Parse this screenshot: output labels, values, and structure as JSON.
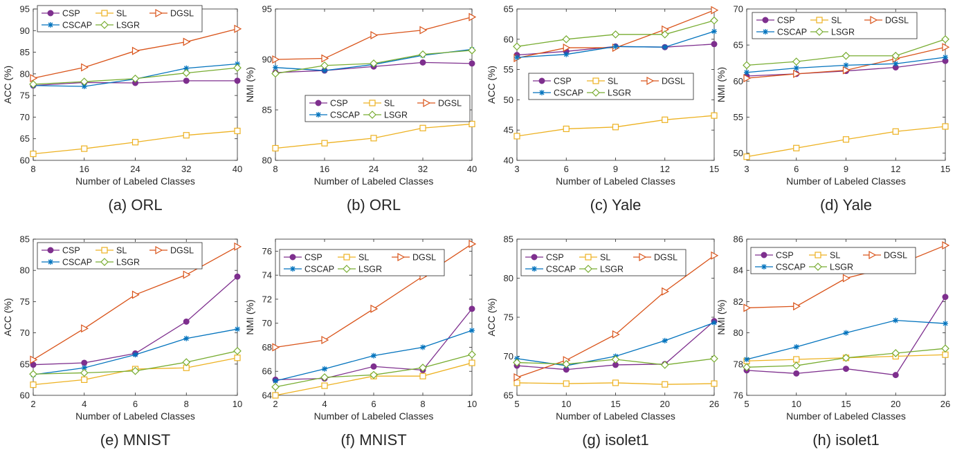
{
  "figure": {
    "xlabel": "Number of Labeled Classes",
    "colors": {
      "CSP": "#7E2F8E",
      "SL": "#EDB120",
      "DGSL": "#D95319",
      "CSCAP": "#0072BD",
      "LSGR": "#77AC30"
    },
    "markers": {
      "CSP": "circle",
      "SL": "square",
      "DGSL": "triangle-right",
      "CSCAP": "asterisk",
      "LSGR": "diamond"
    }
  },
  "chart_data": [
    {
      "type": "line",
      "caption": "(a) ORL",
      "ylabel": "ACC (%)",
      "xticks": [
        "8",
        "16",
        "24",
        "32",
        "40"
      ],
      "ylim": [
        60,
        95
      ],
      "yticks": [
        60,
        65,
        70,
        75,
        80,
        85,
        90,
        95
      ],
      "legend": "top-left",
      "series": [
        {
          "name": "CSP",
          "values": [
            77.3,
            78.0,
            77.9,
            78.4,
            78.4
          ]
        },
        {
          "name": "SL",
          "values": [
            61.5,
            62.7,
            64.2,
            65.8,
            66.8
          ]
        },
        {
          "name": "DGSL",
          "values": [
            79.0,
            81.5,
            85.3,
            87.4,
            90.4
          ]
        },
        {
          "name": "CSCAP",
          "values": [
            77.3,
            77.1,
            78.8,
            81.3,
            82.3
          ]
        },
        {
          "name": "LSGR",
          "values": [
            77.6,
            78.2,
            78.9,
            80.2,
            81.4
          ]
        }
      ]
    },
    {
      "type": "line",
      "caption": "(b) ORL",
      "ylabel": "NMI (%)",
      "xticks": [
        "8",
        "16",
        "24",
        "32",
        "40"
      ],
      "ylim": [
        80,
        95
      ],
      "yticks": [
        80,
        85,
        90,
        95
      ],
      "legend": "middle",
      "series": [
        {
          "name": "CSP",
          "values": [
            88.7,
            88.9,
            89.3,
            89.7,
            89.6
          ]
        },
        {
          "name": "SL",
          "values": [
            81.2,
            81.7,
            82.2,
            83.2,
            83.6
          ]
        },
        {
          "name": "DGSL",
          "values": [
            90.0,
            90.1,
            92.4,
            92.9,
            94.2
          ]
        },
        {
          "name": "CSCAP",
          "values": [
            89.2,
            88.9,
            89.5,
            90.4,
            91.0
          ]
        },
        {
          "name": "LSGR",
          "values": [
            88.6,
            89.4,
            89.6,
            90.5,
            90.9
          ]
        }
      ]
    },
    {
      "type": "line",
      "caption": "(c) Yale",
      "ylabel": "ACC (%)",
      "xticks": [
        "3",
        "6",
        "9",
        "12",
        "15"
      ],
      "ylim": [
        40,
        65
      ],
      "yticks": [
        40,
        45,
        50,
        55,
        60,
        65
      ],
      "legend": "middle",
      "series": [
        {
          "name": "CSP",
          "values": [
            57.4,
            58.0,
            58.8,
            58.7,
            59.2
          ]
        },
        {
          "name": "SL",
          "values": [
            44.0,
            45.2,
            45.5,
            46.7,
            47.4
          ]
        },
        {
          "name": "DGSL",
          "values": [
            56.9,
            58.6,
            58.6,
            61.6,
            64.8
          ]
        },
        {
          "name": "CSCAP",
          "values": [
            57.0,
            57.5,
            58.8,
            58.7,
            61.3
          ]
        },
        {
          "name": "LSGR",
          "values": [
            58.8,
            60.0,
            60.8,
            60.8,
            63.1
          ]
        }
      ]
    },
    {
      "type": "line",
      "caption": "(d) Yale",
      "ylabel": "NMI (%)",
      "xticks": [
        "3",
        "6",
        "9",
        "12",
        "15"
      ],
      "ylim": [
        49,
        70
      ],
      "yticks": [
        50,
        55,
        60,
        65,
        70
      ],
      "legend": "top-left",
      "series": [
        {
          "name": "CSP",
          "values": [
            60.7,
            61.0,
            61.4,
            61.9,
            62.8
          ]
        },
        {
          "name": "SL",
          "values": [
            49.5,
            50.7,
            51.9,
            53.0,
            53.7
          ]
        },
        {
          "name": "DGSL",
          "values": [
            60.4,
            61.0,
            61.5,
            63.1,
            64.7
          ]
        },
        {
          "name": "CSCAP",
          "values": [
            61.2,
            61.8,
            62.2,
            62.4,
            63.3
          ]
        },
        {
          "name": "LSGR",
          "values": [
            62.2,
            62.7,
            63.5,
            63.5,
            65.8
          ]
        }
      ]
    },
    {
      "type": "line",
      "caption": "(e) MNIST",
      "ylabel": "ACC (%)",
      "xticks": [
        "2",
        "4",
        "6",
        "8",
        "10"
      ],
      "ylim": [
        60,
        85
      ],
      "yticks": [
        60,
        65,
        70,
        75,
        80,
        85
      ],
      "legend": "top-left",
      "series": [
        {
          "name": "CSP",
          "values": [
            64.9,
            65.2,
            66.7,
            71.8,
            79.0
          ]
        },
        {
          "name": "SL",
          "values": [
            61.7,
            62.5,
            64.2,
            64.4,
            66.0
          ]
        },
        {
          "name": "DGSL",
          "values": [
            65.7,
            70.7,
            76.1,
            79.3,
            83.8
          ]
        },
        {
          "name": "CSCAP",
          "values": [
            63.3,
            64.4,
            66.5,
            69.1,
            70.6
          ]
        },
        {
          "name": "LSGR",
          "values": [
            63.4,
            63.6,
            63.9,
            65.3,
            67.1
          ]
        }
      ]
    },
    {
      "type": "line",
      "caption": "(f) MNIST",
      "ylabel": "NMI (%)",
      "xticks": [
        "2",
        "4",
        "6",
        "8",
        "10"
      ],
      "ylim": [
        64,
        77
      ],
      "yticks": [
        64,
        66,
        68,
        70,
        72,
        74,
        76
      ],
      "legend": "top-left",
      "series": [
        {
          "name": "CSP",
          "values": [
            65.3,
            65.4,
            66.4,
            66.1,
            71.2
          ]
        },
        {
          "name": "SL",
          "values": [
            64.0,
            64.8,
            65.6,
            65.6,
            66.7
          ]
        },
        {
          "name": "DGSL",
          "values": [
            68.0,
            68.6,
            71.2,
            73.9,
            76.6
          ]
        },
        {
          "name": "CSCAP",
          "values": [
            65.2,
            66.2,
            67.3,
            68.0,
            69.4
          ]
        },
        {
          "name": "LSGR",
          "values": [
            64.7,
            65.5,
            65.7,
            66.3,
            67.4
          ]
        }
      ]
    },
    {
      "type": "line",
      "caption": "(g) isolet1",
      "ylabel": "ACC (%)",
      "xticks": [
        "5",
        "10",
        "15",
        "20",
        "26"
      ],
      "ylim": [
        65,
        85
      ],
      "yticks": [
        65,
        70,
        75,
        80,
        85
      ],
      "legend": "top-left",
      "series": [
        {
          "name": "CSP",
          "values": [
            68.8,
            68.3,
            68.9,
            69.0,
            74.5
          ]
        },
        {
          "name": "SL",
          "values": [
            66.6,
            66.5,
            66.6,
            66.4,
            66.5
          ]
        },
        {
          "name": "DGSL",
          "values": [
            67.3,
            69.5,
            72.8,
            78.3,
            82.9
          ]
        },
        {
          "name": "CSCAP",
          "values": [
            69.7,
            68.8,
            70.0,
            72.0,
            74.3
          ]
        },
        {
          "name": "LSGR",
          "values": [
            69.2,
            69.0,
            69.6,
            68.9,
            69.7
          ]
        }
      ]
    },
    {
      "type": "line",
      "caption": "(h) isolet1",
      "ylabel": "NMI (%)",
      "xticks": [
        "5",
        "10",
        "15",
        "20",
        "26"
      ],
      "ylim": [
        76,
        86
      ],
      "yticks": [
        76,
        78,
        80,
        82,
        84,
        86
      ],
      "legend": "top-left",
      "series": [
        {
          "name": "CSP",
          "values": [
            77.6,
            77.4,
            77.7,
            77.3,
            82.3
          ]
        },
        {
          "name": "SL",
          "values": [
            78.2,
            78.3,
            78.4,
            78.5,
            78.6
          ]
        },
        {
          "name": "DGSL",
          "values": [
            81.6,
            81.7,
            83.5,
            84.3,
            85.6
          ]
        },
        {
          "name": "CSCAP",
          "values": [
            78.3,
            79.1,
            80.0,
            80.8,
            80.6
          ]
        },
        {
          "name": "LSGR",
          "values": [
            77.8,
            77.9,
            78.4,
            78.7,
            79.0
          ]
        }
      ]
    }
  ]
}
